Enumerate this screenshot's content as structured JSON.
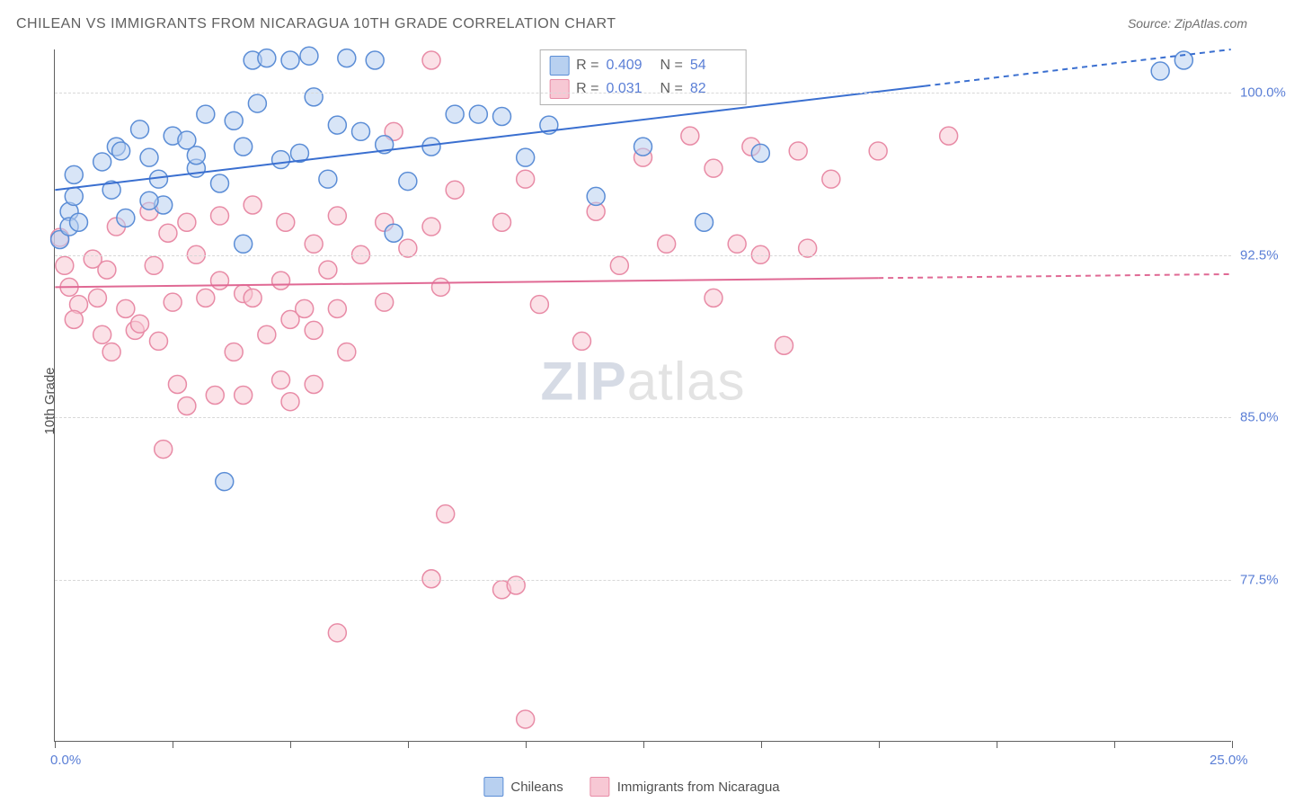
{
  "header": {
    "title": "CHILEAN VS IMMIGRANTS FROM NICARAGUA 10TH GRADE CORRELATION CHART",
    "source": "Source: ZipAtlas.com"
  },
  "axes": {
    "ylabel": "10th Grade",
    "xlim": [
      0,
      25
    ],
    "ylim": [
      70,
      102
    ],
    "x_ticks": [
      0,
      2.5,
      5,
      7.5,
      10,
      12.5,
      15,
      17.5,
      20,
      22.5,
      25
    ],
    "x_tick_labels": {
      "0": "0.0%",
      "25": "25.0%"
    },
    "y_ticks": [
      77.5,
      85.0,
      92.5,
      100.0
    ],
    "y_tick_labels": [
      "77.5%",
      "85.0%",
      "92.5%",
      "100.0%"
    ],
    "grid_color": "#d8d8d8",
    "tick_label_color": "#5b7fd6",
    "axis_label_fontsize": 15
  },
  "series": {
    "chileans": {
      "label": "Chileans",
      "fill_color": "#b8d0f0",
      "stroke_color": "#5b8dd6",
      "fill_opacity": 0.55,
      "R_label": "R =",
      "R_value": "0.409",
      "N_label": "N =",
      "N_value": "54",
      "marker_radius": 10,
      "trend": {
        "x1": 0,
        "y1": 95.5,
        "x2": 25,
        "y2": 102,
        "solid_until": 18.5,
        "color": "#3a6fd0",
        "width": 2
      },
      "points": [
        [
          0.1,
          93.2
        ],
        [
          0.3,
          94.5
        ],
        [
          0.3,
          93.8
        ],
        [
          0.4,
          95.2
        ],
        [
          0.5,
          94.0
        ],
        [
          0.4,
          96.2
        ],
        [
          1.0,
          96.8
        ],
        [
          1.2,
          95.5
        ],
        [
          1.5,
          94.2
        ],
        [
          1.3,
          97.5
        ],
        [
          2.0,
          97.0
        ],
        [
          1.8,
          98.3
        ],
        [
          1.4,
          97.3
        ],
        [
          2.2,
          96.0
        ],
        [
          2.3,
          94.8
        ],
        [
          2.5,
          98.0
        ],
        [
          2.8,
          97.8
        ],
        [
          2.0,
          95.0
        ],
        [
          3.0,
          96.5
        ],
        [
          3.2,
          99.0
        ],
        [
          3.5,
          95.8
        ],
        [
          3.0,
          97.1
        ],
        [
          3.8,
          98.7
        ],
        [
          4.0,
          97.5
        ],
        [
          4.2,
          101.5
        ],
        [
          4.5,
          101.6
        ],
        [
          4.0,
          93.0
        ],
        [
          4.3,
          99.5
        ],
        [
          4.8,
          96.9
        ],
        [
          5.0,
          101.5
        ],
        [
          5.2,
          97.2
        ],
        [
          5.4,
          101.7
        ],
        [
          5.5,
          99.8
        ],
        [
          6.0,
          98.5
        ],
        [
          5.8,
          96.0
        ],
        [
          6.2,
          101.6
        ],
        [
          6.5,
          98.2
        ],
        [
          7.0,
          97.6
        ],
        [
          6.8,
          101.5
        ],
        [
          7.2,
          93.5
        ],
        [
          7.5,
          95.9
        ],
        [
          8.0,
          97.5
        ],
        [
          3.6,
          82.0
        ],
        [
          8.5,
          99.0
        ],
        [
          9.5,
          98.9
        ],
        [
          9.0,
          99.0
        ],
        [
          10.0,
          97.0
        ],
        [
          10.5,
          98.5
        ],
        [
          11.5,
          95.2
        ],
        [
          12.5,
          97.5
        ],
        [
          13.8,
          94.0
        ],
        [
          15.0,
          97.2
        ],
        [
          23.5,
          101.0
        ],
        [
          24.0,
          101.5
        ]
      ]
    },
    "nicaragua": {
      "label": "Immigrants from Nicaragua",
      "fill_color": "#f7c8d4",
      "stroke_color": "#e88ba6",
      "fill_opacity": 0.55,
      "R_label": "R =",
      "R_value": "0.031",
      "N_label": "N =",
      "N_value": "82",
      "marker_radius": 10,
      "trend": {
        "x1": 0,
        "y1": 91.0,
        "x2": 25,
        "y2": 91.6,
        "solid_until": 17.5,
        "color": "#e06994",
        "width": 2
      },
      "points": [
        [
          0.1,
          93.3
        ],
        [
          0.2,
          92.0
        ],
        [
          0.3,
          91.0
        ],
        [
          0.5,
          90.2
        ],
        [
          0.4,
          89.5
        ],
        [
          0.8,
          92.3
        ],
        [
          0.9,
          90.5
        ],
        [
          1.0,
          88.8
        ],
        [
          1.1,
          91.8
        ],
        [
          1.2,
          88.0
        ],
        [
          1.3,
          93.8
        ],
        [
          1.5,
          90.0
        ],
        [
          1.7,
          89.0
        ],
        [
          2.0,
          94.5
        ],
        [
          2.1,
          92.0
        ],
        [
          2.2,
          88.5
        ],
        [
          1.8,
          89.3
        ],
        [
          2.4,
          93.5
        ],
        [
          2.5,
          90.3
        ],
        [
          2.3,
          83.5
        ],
        [
          2.6,
          86.5
        ],
        [
          2.8,
          94.0
        ],
        [
          2.8,
          85.5
        ],
        [
          3.0,
          92.5
        ],
        [
          3.2,
          90.5
        ],
        [
          3.4,
          86.0
        ],
        [
          3.5,
          94.3
        ],
        [
          3.5,
          91.3
        ],
        [
          3.8,
          88.0
        ],
        [
          4.0,
          90.7
        ],
        [
          4.0,
          86.0
        ],
        [
          4.2,
          94.8
        ],
        [
          4.2,
          90.5
        ],
        [
          4.5,
          88.8
        ],
        [
          4.8,
          91.3
        ],
        [
          4.8,
          86.7
        ],
        [
          4.9,
          94.0
        ],
        [
          5.0,
          89.5
        ],
        [
          5.0,
          85.7
        ],
        [
          5.3,
          90.0
        ],
        [
          5.5,
          93.0
        ],
        [
          5.5,
          89.0
        ],
        [
          5.5,
          86.5
        ],
        [
          5.8,
          91.8
        ],
        [
          6.0,
          94.3
        ],
        [
          6.0,
          90.0
        ],
        [
          6.2,
          88.0
        ],
        [
          6.5,
          92.5
        ],
        [
          7.0,
          94.0
        ],
        [
          7.0,
          90.3
        ],
        [
          7.2,
          98.2
        ],
        [
          7.5,
          92.8
        ],
        [
          6.0,
          75.0
        ],
        [
          8.0,
          101.5
        ],
        [
          8.0,
          93.8
        ],
        [
          8.2,
          91.0
        ],
        [
          8.5,
          95.5
        ],
        [
          8.0,
          77.5
        ],
        [
          8.3,
          80.5
        ],
        [
          9.5,
          94.0
        ],
        [
          9.5,
          77.0
        ],
        [
          10.0,
          96.0
        ],
        [
          10.3,
          90.2
        ],
        [
          9.8,
          77.2
        ],
        [
          10.0,
          71.0
        ],
        [
          11.2,
          88.5
        ],
        [
          11.5,
          94.5
        ],
        [
          12.0,
          92.0
        ],
        [
          12.5,
          97.0
        ],
        [
          13.0,
          93.0
        ],
        [
          13.5,
          98.0
        ],
        [
          14.0,
          90.5
        ],
        [
          14.0,
          96.5
        ],
        [
          14.5,
          93.0
        ],
        [
          14.8,
          97.5
        ],
        [
          15.0,
          92.5
        ],
        [
          15.5,
          88.3
        ],
        [
          16.0,
          92.8
        ],
        [
          15.8,
          97.3
        ],
        [
          16.5,
          96.0
        ],
        [
          17.5,
          97.3
        ],
        [
          19.0,
          98.0
        ]
      ]
    }
  },
  "watermark": {
    "text_bold": "ZIP",
    "text_rest": "atlas"
  },
  "colors": {
    "background": "#ffffff",
    "title_color": "#606060",
    "axis_line_color": "#606060"
  }
}
